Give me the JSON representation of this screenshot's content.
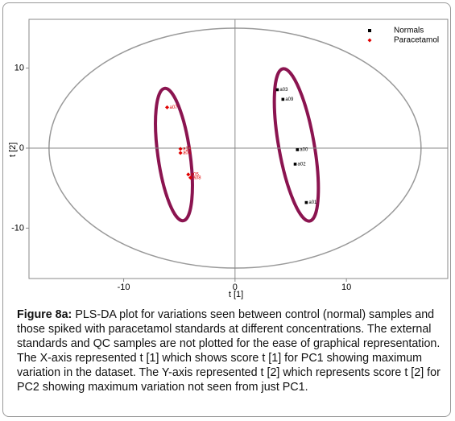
{
  "chart_data": {
    "type": "scatter",
    "xlabel": "t [1]",
    "ylabel": "t [2]",
    "xlim": [
      -18.5,
      19.1
    ],
    "ylim": [
      -16.3,
      16.1
    ],
    "xticks": [
      -10,
      0,
      10
    ],
    "yticks": [
      -10,
      0,
      10
    ],
    "legend": "upper right",
    "series": [
      {
        "name": "Normals",
        "color": "#000000",
        "marker": "square",
        "x": [
          3.8,
          4.3,
          5.6,
          5.4,
          6.4
        ],
        "y": [
          7.3,
          6.1,
          -0.2,
          -2.0,
          -6.8
        ],
        "point_labels": [
          "a03",
          "a09",
          "a00",
          "a02",
          "a01"
        ]
      },
      {
        "name": "Paracetamol",
        "color": "#e00000",
        "marker": "diamond",
        "x": [
          -6.1,
          -4.9,
          -4.9,
          -4.2,
          -4.0
        ],
        "y": [
          5.1,
          -0.1,
          -0.6,
          -3.3,
          -3.7
        ],
        "point_labels": [
          "a07",
          "a10",
          "a04",
          "a05",
          "a08"
        ]
      }
    ]
  },
  "caption": {
    "label": "Figure 8a:",
    "text": "PLS-DA plot for variations seen between control (normal) samples and those spiked with paracetamol standards at different concentrations. The external standards and QC samples are not plotted for the ease of graphical representation. The X-axis represented t [1] which shows score t [1] for PC1 showing maximum variation in the dataset. The Y-axis represented t [2] which represents score t [2] for PC2 showing maximum variation not seen from just PC1."
  }
}
